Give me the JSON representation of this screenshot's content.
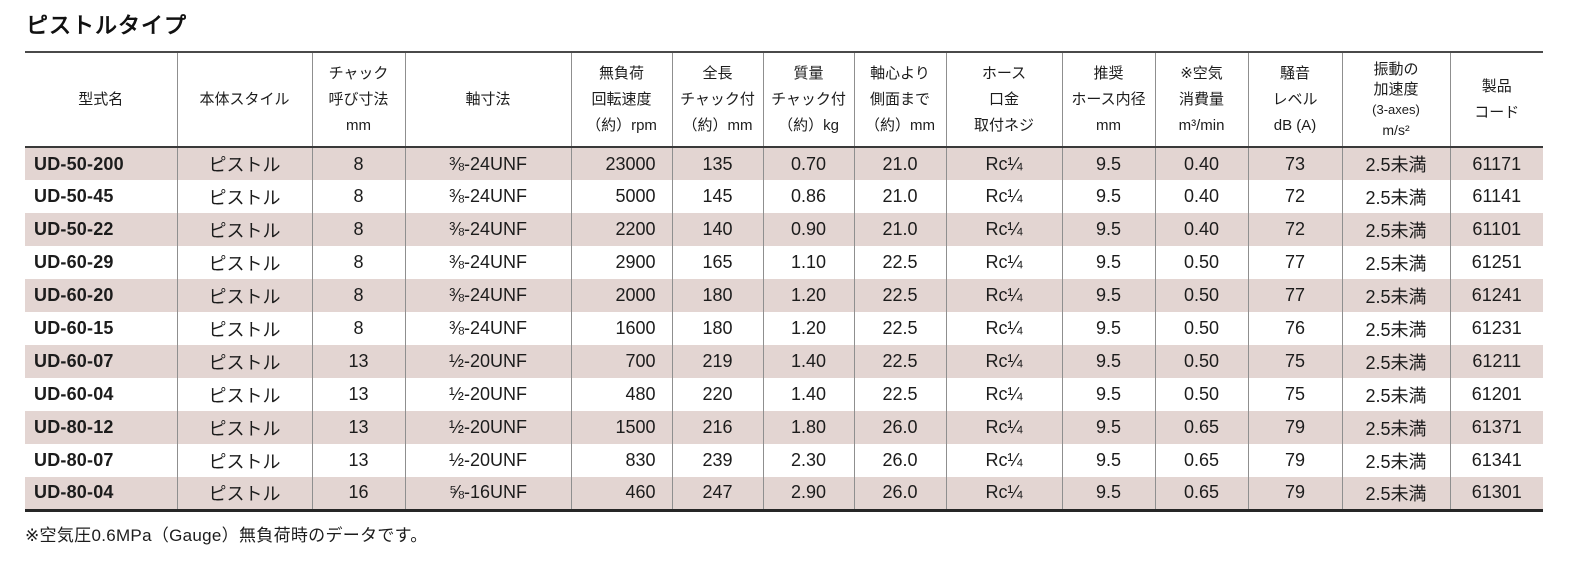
{
  "title": "ピストルタイプ",
  "colors": {
    "row_shade": "#e3d5d2",
    "border_dark": "#3a3a3a",
    "border_light": "#8f8f8f",
    "text": "#1c1c1c"
  },
  "table": {
    "columns": [
      {
        "id": "model",
        "lines": [
          "型式名"
        ]
      },
      {
        "id": "body-style",
        "lines": [
          "本体スタイル"
        ]
      },
      {
        "id": "chuck-size",
        "lines": [
          "チャック",
          "呼び寸法",
          "mm"
        ]
      },
      {
        "id": "shaft-size",
        "lines": [
          "軸寸法"
        ]
      },
      {
        "id": "no-load-speed",
        "lines": [
          "無負荷",
          "回転速度",
          "（約）rpm"
        ]
      },
      {
        "id": "overall-length",
        "lines": [
          "全長",
          "チャック付",
          "（約）mm"
        ]
      },
      {
        "id": "mass",
        "lines": [
          "質量",
          "チャック付",
          "（約）kg"
        ]
      },
      {
        "id": "axis-to-side",
        "lines": [
          "軸心より",
          "側面まで",
          "（約）mm"
        ]
      },
      {
        "id": "hose-thread",
        "lines": [
          "ホース",
          "口金",
          "取付ネジ"
        ]
      },
      {
        "id": "hose-inner-dia",
        "lines": [
          "推奨",
          "ホース内径",
          "mm"
        ]
      },
      {
        "id": "air-consumption",
        "lines": [
          "※空気",
          "消費量",
          "m³/min"
        ]
      },
      {
        "id": "noise-level",
        "lines": [
          "騒音",
          "レベル",
          "dB (A)"
        ]
      },
      {
        "id": "vibration-accel",
        "lines": [
          "振動の",
          "加速度",
          "(3-axes)",
          "m/s²"
        ]
      },
      {
        "id": "product-code",
        "lines": [
          "製品",
          "コード"
        ]
      }
    ],
    "rows": [
      {
        "cells": [
          "UD-50-200",
          "ピストル",
          "8",
          "⅜-24UNF",
          "23000",
          "135",
          "0.70",
          "21.0",
          "Rc¼",
          "9.5",
          "0.40",
          "73",
          "2.5未満",
          "61171"
        ]
      },
      {
        "cells": [
          "UD-50-45",
          "ピストル",
          "8",
          "⅜-24UNF",
          "5000",
          "145",
          "0.86",
          "21.0",
          "Rc¼",
          "9.5",
          "0.40",
          "72",
          "2.5未満",
          "61141"
        ]
      },
      {
        "cells": [
          "UD-50-22",
          "ピストル",
          "8",
          "⅜-24UNF",
          "2200",
          "140",
          "0.90",
          "21.0",
          "Rc¼",
          "9.5",
          "0.40",
          "72",
          "2.5未満",
          "61101"
        ]
      },
      {
        "cells": [
          "UD-60-29",
          "ピストル",
          "8",
          "⅜-24UNF",
          "2900",
          "165",
          "1.10",
          "22.5",
          "Rc¼",
          "9.5",
          "0.50",
          "77",
          "2.5未満",
          "61251"
        ]
      },
      {
        "cells": [
          "UD-60-20",
          "ピストル",
          "8",
          "⅜-24UNF",
          "2000",
          "180",
          "1.20",
          "22.5",
          "Rc¼",
          "9.5",
          "0.50",
          "77",
          "2.5未満",
          "61241"
        ]
      },
      {
        "cells": [
          "UD-60-15",
          "ピストル",
          "8",
          "⅜-24UNF",
          "1600",
          "180",
          "1.20",
          "22.5",
          "Rc¼",
          "9.5",
          "0.50",
          "76",
          "2.5未満",
          "61231"
        ]
      },
      {
        "cells": [
          "UD-60-07",
          "ピストル",
          "13",
          "½-20UNF",
          "700",
          "219",
          "1.40",
          "22.5",
          "Rc¼",
          "9.5",
          "0.50",
          "75",
          "2.5未満",
          "61211"
        ]
      },
      {
        "cells": [
          "UD-60-04",
          "ピストル",
          "13",
          "½-20UNF",
          "480",
          "220",
          "1.40",
          "22.5",
          "Rc¼",
          "9.5",
          "0.50",
          "75",
          "2.5未満",
          "61201"
        ]
      },
      {
        "cells": [
          "UD-80-12",
          "ピストル",
          "13",
          "½-20UNF",
          "1500",
          "216",
          "1.80",
          "26.0",
          "Rc¼",
          "9.5",
          "0.65",
          "79",
          "2.5未満",
          "61371"
        ]
      },
      {
        "cells": [
          "UD-80-07",
          "ピストル",
          "13",
          "½-20UNF",
          "830",
          "239",
          "2.30",
          "26.0",
          "Rc¼",
          "9.5",
          "0.65",
          "79",
          "2.5未満",
          "61341"
        ]
      },
      {
        "cells": [
          "UD-80-04",
          "ピストル",
          "16",
          "⅝-16UNF",
          "460",
          "247",
          "2.90",
          "26.0",
          "Rc¼",
          "9.5",
          "0.65",
          "79",
          "2.5未満",
          "61301"
        ]
      }
    ]
  },
  "footer": {
    "note": "※空気圧0.6MPa（Gauge）無負荷時のデータです。"
  }
}
